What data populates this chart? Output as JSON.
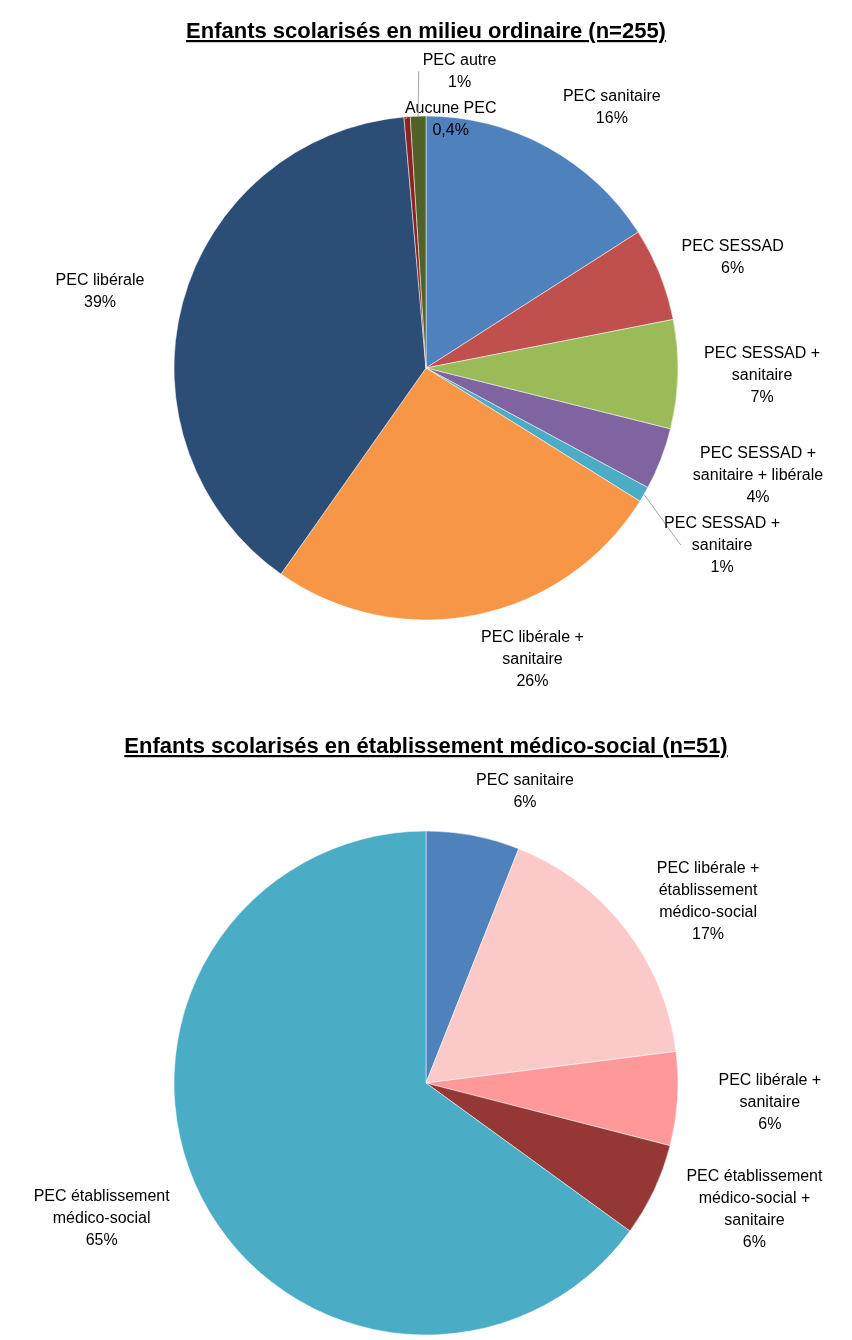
{
  "chart_data": [
    {
      "type": "pie",
      "title": "Enfants scolarisés en milieu ordinaire (n=255)",
      "categories": [
        "PEC sanitaire",
        "PEC SESSAD",
        "PEC SESSAD + sanitaire",
        "PEC SESSAD + sanitaire + libérale",
        "PEC SESSAD + sanitaire",
        "PEC libérale + sanitaire",
        "PEC libérale",
        "Aucune PEC",
        "PEC autre"
      ],
      "values": [
        16,
        6,
        7,
        4,
        1,
        26,
        39,
        0.4,
        1
      ],
      "value_labels": [
        "16%",
        "6%",
        "7%",
        "4%",
        "1%",
        "26%",
        "39%",
        "0,4%",
        "1%"
      ],
      "colors": [
        "#4f81bd",
        "#c0504d",
        "#9bbb59",
        "#8064a2",
        "#4bacc6",
        "#f79646",
        "#2c4d75",
        "#8b2323",
        "#4f6228"
      ]
    },
    {
      "type": "pie",
      "title": "Enfants scolarisés en établissement médico-social (n=51)",
      "categories": [
        "PEC sanitaire",
        "PEC libérale + établissement médico-social",
        "PEC libérale + sanitaire",
        "PEC établissement médico-social + sanitaire",
        "PEC établissement médico-social"
      ],
      "values": [
        6,
        17,
        6,
        6,
        65
      ],
      "value_labels": [
        "6%",
        "17%",
        "6%",
        "6%",
        "65%"
      ],
      "colors": [
        "#4f81bd",
        "#fcc9c9",
        "#ff9999",
        "#953735",
        "#4bacc6"
      ]
    }
  ]
}
